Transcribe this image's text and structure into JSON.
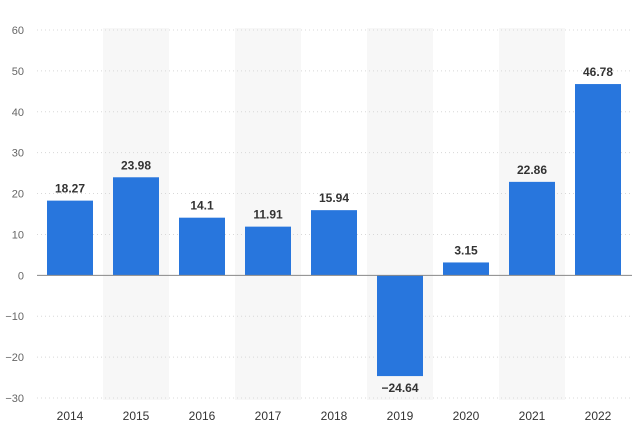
{
  "chart_data": {
    "type": "bar",
    "title": "",
    "xlabel": "",
    "ylabel": "",
    "categories": [
      "2014",
      "2015",
      "2016",
      "2017",
      "2018",
      "2019",
      "2020",
      "2021",
      "2022"
    ],
    "values": [
      18.27,
      23.98,
      14.1,
      11.91,
      15.94,
      -24.64,
      3.15,
      22.86,
      46.78
    ],
    "data_labels": [
      "18.27",
      "23.98",
      "14.1",
      "11.91",
      "15.94",
      "−24.64",
      "3.15",
      "22.86",
      "46.78"
    ],
    "ylim": [
      -30,
      60
    ],
    "yticks": [
      60,
      50,
      40,
      30,
      20,
      10,
      0,
      -10,
      -20,
      -30
    ],
    "ytick_labels": [
      "60",
      "50",
      "40",
      "30",
      "20",
      "10",
      "0",
      "−10",
      "−20",
      "−30"
    ],
    "grid": true,
    "colors": {
      "bar": "#2876dd",
      "band": "#f7f7f7",
      "grid": "#d8d8d8",
      "zero": "#888888"
    }
  }
}
